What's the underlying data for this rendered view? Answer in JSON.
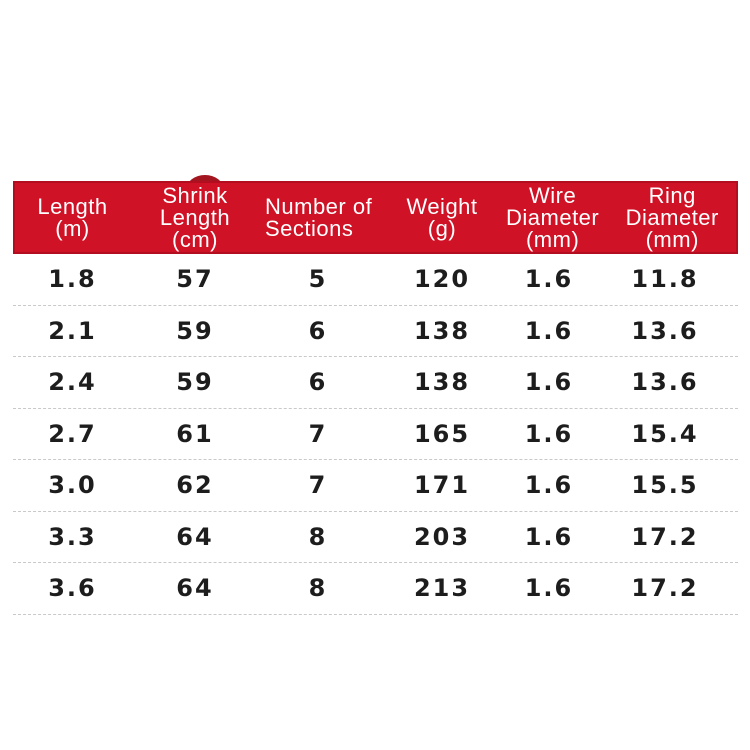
{
  "colors": {
    "background": "#ffffff",
    "header_bg": "#d01226",
    "header_text": "#ffffff",
    "badge": "#a3151f",
    "divider": "#c9c9c9",
    "data_text": "#1d1d1d"
  },
  "table": {
    "columns": [
      {
        "id": "length",
        "header_lines": [
          "Length",
          "(m)"
        ],
        "align": "center"
      },
      {
        "id": "shrink-length",
        "header_lines": [
          "Shrink",
          "Length",
          "(cm)"
        ],
        "align": "center"
      },
      {
        "id": "number-of-sections",
        "header_lines": [
          "Number of",
          "Sections"
        ],
        "align": "left"
      },
      {
        "id": "weight",
        "header_lines": [
          "Weight",
          "(g)"
        ],
        "align": "center"
      },
      {
        "id": "wire-diameter",
        "header_lines": [
          "Wire",
          "Diameter",
          "(mm)"
        ],
        "align": "center"
      },
      {
        "id": "ring-diameter",
        "header_lines": [
          "Ring",
          "Diameter",
          "(mm)"
        ],
        "align": "center"
      }
    ]
  },
  "chart_data": {
    "type": "table",
    "title": "",
    "columns": [
      "Length (m)",
      "Shrink Length (cm)",
      "Number of Sections",
      "Weight (g)",
      "Wire Diameter (mm)",
      "Ring Diameter (mm)"
    ],
    "rows": [
      [
        "1.8",
        "57",
        "5",
        "120",
        "1.6",
        "11.8"
      ],
      [
        "2.1",
        "59",
        "6",
        "138",
        "1.6",
        "13.6"
      ],
      [
        "2.4",
        "59",
        "6",
        "138",
        "1.6",
        "13.6"
      ],
      [
        "2.7",
        "61",
        "7",
        "165",
        "1.6",
        "15.4"
      ],
      [
        "3.0",
        "62",
        "7",
        "171",
        "1.6",
        "15.5"
      ],
      [
        "3.3",
        "64",
        "8",
        "203",
        "1.6",
        "17.2"
      ],
      [
        "3.6",
        "64",
        "8",
        "213",
        "1.6",
        "17.2"
      ]
    ]
  }
}
